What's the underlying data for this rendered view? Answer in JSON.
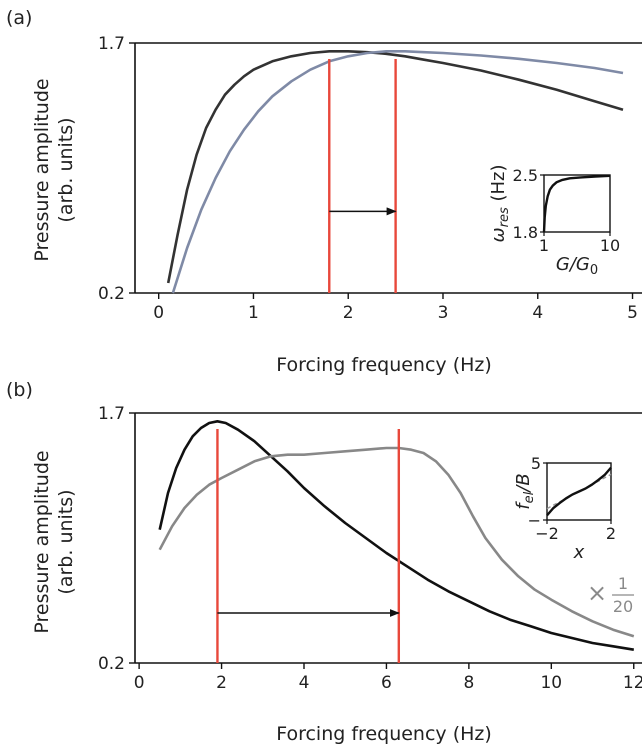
{
  "chart_data": [
    {
      "panel_label": "(a)",
      "type": "line",
      "xlabel": "Forcing frequency (Hz)",
      "ylabel_line1": "Pressure amplitude",
      "ylabel_line2": "(arb. units)",
      "xlim": [
        -0.25,
        5.1
      ],
      "ylim": [
        0.2,
        1.7
      ],
      "xticks": [
        0,
        1,
        2,
        3,
        4,
        5
      ],
      "yticks": [
        0.2,
        1.7
      ],
      "ytick_labels": [
        "0.2",
        "1.7"
      ],
      "series": [
        {
          "color": "#333333",
          "x": [
            0.1,
            0.2,
            0.3,
            0.4,
            0.5,
            0.6,
            0.7,
            0.8,
            0.9,
            1.0,
            1.2,
            1.4,
            1.6,
            1.8,
            2.0,
            2.2,
            2.4,
            2.6,
            2.8,
            3.0,
            3.4,
            3.8,
            4.2,
            4.6,
            4.9
          ],
          "y": [
            0.26,
            0.55,
            0.82,
            1.03,
            1.19,
            1.3,
            1.39,
            1.45,
            1.5,
            1.54,
            1.59,
            1.62,
            1.64,
            1.65,
            1.65,
            1.645,
            1.635,
            1.62,
            1.6,
            1.58,
            1.535,
            1.48,
            1.42,
            1.35,
            1.3
          ]
        },
        {
          "color": "#7f8aa6",
          "x": [
            0.15,
            0.3,
            0.45,
            0.6,
            0.75,
            0.9,
            1.05,
            1.2,
            1.4,
            1.6,
            1.8,
            2.0,
            2.2,
            2.4,
            2.6,
            2.8,
            3.0,
            3.4,
            3.8,
            4.2,
            4.6,
            4.9
          ],
          "y": [
            0.2,
            0.47,
            0.7,
            0.89,
            1.05,
            1.18,
            1.29,
            1.38,
            1.47,
            1.54,
            1.59,
            1.62,
            1.64,
            1.65,
            1.65,
            1.645,
            1.64,
            1.625,
            1.605,
            1.58,
            1.55,
            1.52
          ]
        }
      ],
      "vlines": [
        {
          "x": 1.8,
          "color": "#e8483b"
        },
        {
          "x": 2.5,
          "color": "#e8483b"
        }
      ],
      "arrow": {
        "x_from": 1.8,
        "x_to": 2.5,
        "y": 0.69
      },
      "inset": {
        "xlabel_main": "G/G",
        "xlabel_sub": "0",
        "ylabel_main": "ω",
        "ylabel_sub": "res",
        "ylabel_unit": " (Hz)",
        "xlim": [
          1,
          10
        ],
        "ylim": [
          1.8,
          2.5
        ],
        "xticks": [
          1,
          10
        ],
        "yticks": [
          1.8,
          2.5
        ],
        "ytick_labels": [
          "1.8",
          "2.5"
        ],
        "color": "#111111",
        "x": [
          1.0,
          1.1,
          1.25,
          1.5,
          1.8,
          2.2,
          2.7,
          3.5,
          4.5,
          6.0,
          8.0,
          10.0
        ],
        "y": [
          1.8,
          1.98,
          2.12,
          2.24,
          2.32,
          2.37,
          2.41,
          2.44,
          2.46,
          2.47,
          2.48,
          2.49
        ]
      }
    },
    {
      "panel_label": "(b)",
      "type": "line",
      "xlabel": "Forcing frequency (Hz)",
      "ylabel_line1": "Pressure amplitude",
      "ylabel_line2": "(arb. units)",
      "xlim": [
        -0.1,
        12.2
      ],
      "ylim": [
        0.2,
        1.7
      ],
      "xticks": [
        0,
        2,
        4,
        6,
        8,
        10,
        12
      ],
      "yticks": [
        0.2,
        1.7
      ],
      "ytick_labels": [
        "0.2",
        "1.7"
      ],
      "series": [
        {
          "color": "#111111",
          "x": [
            0.5,
            0.7,
            0.9,
            1.1,
            1.3,
            1.5,
            1.7,
            1.9,
            2.1,
            2.4,
            2.8,
            3.2,
            3.6,
            4.0,
            4.5,
            5.0,
            5.5,
            6.0,
            6.5,
            7.0,
            7.5,
            8.0,
            8.5,
            9.0,
            9.5,
            10.0,
            10.5,
            11.0,
            11.5,
            12.0
          ],
          "y": [
            1.0,
            1.22,
            1.37,
            1.48,
            1.56,
            1.61,
            1.64,
            1.65,
            1.64,
            1.6,
            1.53,
            1.44,
            1.35,
            1.25,
            1.14,
            1.04,
            0.95,
            0.86,
            0.78,
            0.7,
            0.63,
            0.57,
            0.51,
            0.46,
            0.42,
            0.38,
            0.35,
            0.32,
            0.3,
            0.28
          ]
        },
        {
          "color": "#888888",
          "x": [
            0.5,
            0.8,
            1.1,
            1.4,
            1.7,
            2.0,
            2.4,
            2.8,
            3.2,
            3.6,
            4.0,
            4.5,
            5.0,
            5.5,
            6.0,
            6.3,
            6.6,
            6.9,
            7.2,
            7.5,
            7.8,
            8.1,
            8.4,
            8.8,
            9.2,
            9.6,
            10.0,
            10.5,
            11.0,
            11.5,
            12.0
          ],
          "y": [
            0.88,
            1.02,
            1.13,
            1.21,
            1.27,
            1.31,
            1.36,
            1.41,
            1.44,
            1.45,
            1.45,
            1.46,
            1.47,
            1.48,
            1.49,
            1.49,
            1.48,
            1.46,
            1.41,
            1.33,
            1.22,
            1.08,
            0.95,
            0.82,
            0.72,
            0.64,
            0.58,
            0.51,
            0.45,
            0.4,
            0.36
          ]
        }
      ],
      "vlines": [
        {
          "x": 1.9,
          "color": "#e8483b"
        },
        {
          "x": 6.3,
          "color": "#e8483b"
        }
      ],
      "arrow": {
        "x_from": 1.9,
        "x_to": 6.3,
        "y": 0.5
      },
      "scale_note": {
        "symbol": "×",
        "numerator": "1",
        "denominator": "20",
        "x": 11.4,
        "y": 0.62
      },
      "inset": {
        "xlabel_main": "x",
        "ylabel_main": "f",
        "ylabel_sub": "el",
        "ylabel_unit": "/B",
        "xlim": [
          -2,
          2
        ],
        "ylim": [
          -5,
          5
        ],
        "xticks": [
          -2,
          2
        ],
        "xtick_labels": [
          "−2",
          "2"
        ],
        "yticks": [
          -5,
          5
        ],
        "ytick_labels": [
          "−",
          "5"
        ],
        "color": "#111111",
        "x": [
          -2.0,
          -1.6,
          -1.2,
          -0.8,
          -0.4,
          0.0,
          0.4,
          0.8,
          1.2,
          1.6,
          2.0
        ],
        "y": [
          -4.2,
          -2.9,
          -2.0,
          -1.2,
          -0.5,
          0.0,
          0.5,
          1.2,
          2.0,
          2.9,
          4.2
        ],
        "dashed": {
          "color": "#999999",
          "x": [
            -2.0,
            2.0
          ],
          "y": [
            -3.0,
            3.0
          ]
        }
      }
    }
  ]
}
